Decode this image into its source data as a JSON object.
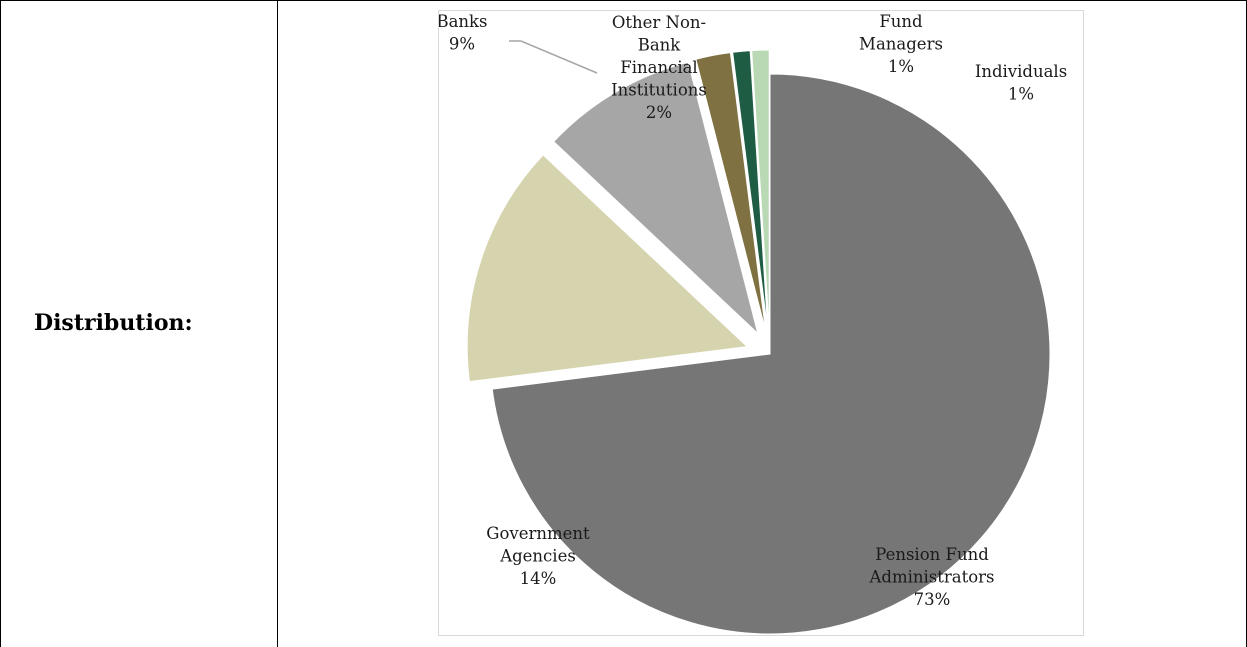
{
  "row_label": "Distribution:",
  "chart_data": {
    "type": "pie",
    "title": "",
    "slices": [
      {
        "label": "Pension Fund Administrators",
        "lines": [
          "Pension Fund",
          "Administrators",
          "73%"
        ],
        "value": 73,
        "color": "#767676"
      },
      {
        "label": "Government Agencies",
        "lines": [
          "Government",
          "Agencies",
          "14%"
        ],
        "value": 14,
        "color": "#d6d4ae"
      },
      {
        "label": "Banks",
        "lines": [
          "Banks",
          "9%"
        ],
        "value": 9,
        "color": "#a6a6a6"
      },
      {
        "label": "Other Non-Bank Financial Institutions",
        "lines": [
          "Other Non-",
          "Bank",
          "Financial",
          "Institutions",
          "2%"
        ],
        "value": 2,
        "color": "#7f7142"
      },
      {
        "label": "Fund Managers",
        "lines": [
          "Fund",
          "Managers",
          "1%"
        ],
        "value": 1,
        "color": "#1e5c44"
      },
      {
        "label": "Individuals",
        "lines": [
          "Individuals",
          "1%"
        ],
        "value": 1,
        "color": "#b9d9b5"
      }
    ],
    "start_angle_deg": 0,
    "direction": "clockwise",
    "exploded": true,
    "legend": "none"
  }
}
